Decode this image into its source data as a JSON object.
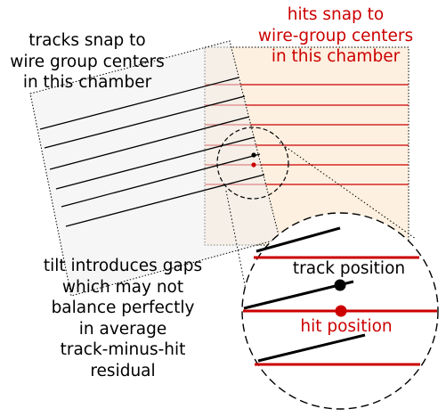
{
  "colors": {
    "hit": "#cc0000",
    "track": "#000000",
    "chamber_fill": "#fdf0e0",
    "tilted_chamber_fill": "#f2f2f2"
  },
  "labels": {
    "tracks_snap": [
      "tracks snap to",
      "wire group centers",
      "in this chamber"
    ],
    "hits_snap": [
      "hits snap to",
      "wire-group centers",
      "in this chamber"
    ],
    "tilt_note": [
      "tilt introduces gaps",
      "which may not",
      "balance perfectly",
      "in average",
      "track-minus-hit",
      "residual"
    ],
    "track_position": "track position",
    "hit_position": "hit position"
  }
}
